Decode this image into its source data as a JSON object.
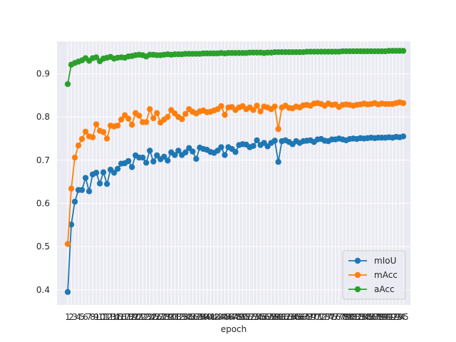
{
  "chart_data": {
    "type": "line",
    "xlabel": "epoch",
    "ylabel": "",
    "xlim": [
      -2,
      97
    ],
    "ylim": [
      0.365,
      0.975
    ],
    "yticks": [
      0.4,
      0.5,
      0.6,
      0.7,
      0.8,
      0.9
    ],
    "ytick_labels": [
      "0.4",
      "0.5",
      "0.6",
      "0.7",
      "0.8",
      "0.9"
    ],
    "grid": true,
    "legend_position": "lower-right",
    "colors": {
      "plot_bg": "#eaeaf2",
      "grid": "#ffffff",
      "text": "#262626"
    },
    "x": [
      1,
      2,
      3,
      4,
      5,
      6,
      7,
      8,
      9,
      10,
      11,
      12,
      13,
      14,
      15,
      16,
      17,
      18,
      19,
      20,
      21,
      22,
      23,
      24,
      25,
      26,
      27,
      28,
      29,
      30,
      31,
      32,
      33,
      34,
      35,
      36,
      37,
      38,
      39,
      40,
      41,
      42,
      43,
      44,
      45,
      46,
      47,
      48,
      49,
      50,
      51,
      52,
      53,
      54,
      55,
      56,
      57,
      58,
      59,
      60,
      61,
      62,
      63,
      64,
      65,
      66,
      67,
      68,
      69,
      70,
      71,
      72,
      73,
      74,
      75,
      76,
      77,
      78,
      79,
      80,
      81,
      82,
      83,
      84,
      85,
      86,
      87,
      88,
      89,
      90,
      91,
      92,
      93,
      94,
      95
    ],
    "series": [
      {
        "name": "mIoU",
        "color": "#1f77b4",
        "values": [
          0.395,
          0.551,
          0.604,
          0.631,
          0.631,
          0.659,
          0.628,
          0.667,
          0.671,
          0.646,
          0.672,
          0.645,
          0.678,
          0.671,
          0.68,
          0.692,
          0.693,
          0.698,
          0.684,
          0.711,
          0.706,
          0.706,
          0.694,
          0.722,
          0.697,
          0.711,
          0.702,
          0.708,
          0.699,
          0.718,
          0.712,
          0.722,
          0.712,
          0.718,
          0.728,
          0.72,
          0.703,
          0.729,
          0.726,
          0.724,
          0.719,
          0.717,
          0.722,
          0.73,
          0.712,
          0.73,
          0.726,
          0.719,
          0.735,
          0.737,
          0.736,
          0.73,
          0.733,
          0.746,
          0.735,
          0.74,
          0.732,
          0.74,
          0.745,
          0.696,
          0.744,
          0.746,
          0.742,
          0.737,
          0.744,
          0.74,
          0.744,
          0.745,
          0.746,
          0.742,
          0.748,
          0.749,
          0.745,
          0.744,
          0.748,
          0.748,
          0.75,
          0.748,
          0.746,
          0.749,
          0.75,
          0.749,
          0.751,
          0.75,
          0.751,
          0.752,
          0.751,
          0.752,
          0.752,
          0.752,
          0.753,
          0.752,
          0.754,
          0.753,
          0.755
        ]
      },
      {
        "name": "mAcc",
        "color": "#ff7f0e",
        "values": [
          0.506,
          0.634,
          0.706,
          0.734,
          0.749,
          0.766,
          0.755,
          0.753,
          0.783,
          0.768,
          0.765,
          0.75,
          0.78,
          0.778,
          0.78,
          0.794,
          0.804,
          0.796,
          0.782,
          0.809,
          0.803,
          0.788,
          0.788,
          0.818,
          0.797,
          0.809,
          0.787,
          0.794,
          0.8,
          0.816,
          0.808,
          0.8,
          0.795,
          0.807,
          0.818,
          0.812,
          0.808,
          0.813,
          0.815,
          0.811,
          0.812,
          0.815,
          0.818,
          0.825,
          0.805,
          0.822,
          0.823,
          0.816,
          0.822,
          0.825,
          0.818,
          0.822,
          0.816,
          0.826,
          0.813,
          0.824,
          0.822,
          0.818,
          0.824,
          0.772,
          0.822,
          0.826,
          0.821,
          0.82,
          0.824,
          0.822,
          0.827,
          0.828,
          0.826,
          0.831,
          0.832,
          0.83,
          0.826,
          0.831,
          0.828,
          0.829,
          0.823,
          0.828,
          0.829,
          0.828,
          0.826,
          0.828,
          0.829,
          0.831,
          0.829,
          0.83,
          0.832,
          0.829,
          0.831,
          0.83,
          0.83,
          0.83,
          0.832,
          0.834,
          0.832
        ]
      },
      {
        "name": "aAcc",
        "color": "#2ca02c",
        "values": [
          0.876,
          0.921,
          0.925,
          0.928,
          0.931,
          0.936,
          0.93,
          0.936,
          0.938,
          0.929,
          0.935,
          0.937,
          0.939,
          0.935,
          0.937,
          0.938,
          0.937,
          0.94,
          0.941,
          0.943,
          0.944,
          0.943,
          0.94,
          0.944,
          0.944,
          0.943,
          0.943,
          0.944,
          0.945,
          0.944,
          0.945,
          0.945,
          0.945,
          0.946,
          0.946,
          0.946,
          0.946,
          0.946,
          0.947,
          0.947,
          0.947,
          0.947,
          0.947,
          0.948,
          0.947,
          0.948,
          0.948,
          0.948,
          0.948,
          0.948,
          0.948,
          0.949,
          0.949,
          0.949,
          0.949,
          0.948,
          0.949,
          0.949,
          0.95,
          0.95,
          0.95,
          0.95,
          0.95,
          0.95,
          0.95,
          0.95,
          0.95,
          0.951,
          0.951,
          0.951,
          0.951,
          0.951,
          0.951,
          0.951,
          0.951,
          0.951,
          0.951,
          0.952,
          0.952,
          0.952,
          0.952,
          0.952,
          0.952,
          0.952,
          0.952,
          0.952,
          0.952,
          0.952,
          0.952,
          0.952,
          0.953,
          0.953,
          0.953,
          0.953,
          0.953
        ]
      }
    ]
  }
}
